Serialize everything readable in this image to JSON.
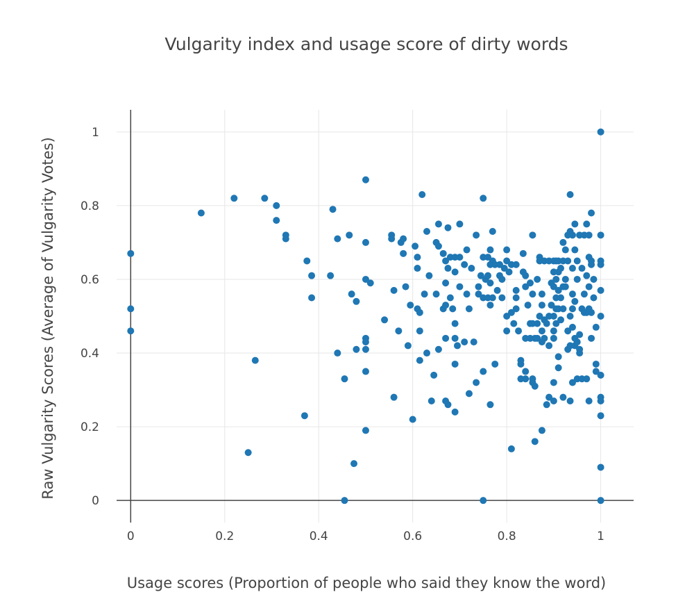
{
  "chart_data": {
    "type": "scatter",
    "title": "Vulgarity index and usage score of dirty words",
    "xlabel": "Usage scores (Proportion of people who said they know the word)",
    "ylabel": "Raw Vulgarity Scores (Average of Vulgarity Votes)",
    "xlim": [
      -0.03,
      1.07
    ],
    "ylim": [
      -0.06,
      1.06
    ],
    "x_ticks": [
      0,
      0.2,
      0.4,
      0.6,
      0.8,
      1
    ],
    "x_tick_labels": [
      "0",
      "0.2",
      "0.4",
      "0.6",
      "0.8",
      "1"
    ],
    "y_ticks": [
      0,
      0.2,
      0.4,
      0.6,
      0.8,
      1
    ],
    "y_tick_labels": [
      "0",
      "0.2",
      "0.4",
      "0.6",
      "0.8",
      "1"
    ],
    "grid": true,
    "color": "#1f77b4",
    "points": [
      [
        0,
        0.67
      ],
      [
        0,
        0.52
      ],
      [
        0,
        0.46
      ],
      [
        0.15,
        0.78
      ],
      [
        0.22,
        0.82
      ],
      [
        0.25,
        0.13
      ],
      [
        0.265,
        0.38
      ],
      [
        0.285,
        0.82
      ],
      [
        0.31,
        0.8
      ],
      [
        0.31,
        0.76
      ],
      [
        0.33,
        0.72
      ],
      [
        0.33,
        0.71
      ],
      [
        0.37,
        0.23
      ],
      [
        0.375,
        0.65
      ],
      [
        0.385,
        0.61
      ],
      [
        0.385,
        0.55
      ],
      [
        0.425,
        0.61
      ],
      [
        0.43,
        0.79
      ],
      [
        0.44,
        0.71
      ],
      [
        0.44,
        0.4
      ],
      [
        0.455,
        0.33
      ],
      [
        0.455,
        0
      ],
      [
        0.465,
        0.72
      ],
      [
        0.47,
        0.56
      ],
      [
        0.475,
        0.1
      ],
      [
        0.48,
        0.54
      ],
      [
        0.48,
        0.41
      ],
      [
        0.5,
        0.87
      ],
      [
        0.5,
        0.7
      ],
      [
        0.5,
        0.6
      ],
      [
        0.5,
        0.44
      ],
      [
        0.5,
        0.43
      ],
      [
        0.5,
        0.41
      ],
      [
        0.5,
        0.35
      ],
      [
        0.5,
        0.19
      ],
      [
        0.51,
        0.59
      ],
      [
        0.54,
        0.49
      ],
      [
        0.555,
        0.72
      ],
      [
        0.555,
        0.71
      ],
      [
        0.56,
        0.57
      ],
      [
        0.56,
        0.28
      ],
      [
        0.57,
        0.46
      ],
      [
        0.575,
        0.7
      ],
      [
        0.58,
        0.71
      ],
      [
        0.58,
        0.67
      ],
      [
        0.585,
        0.58
      ],
      [
        0.59,
        0.42
      ],
      [
        0.595,
        0.53
      ],
      [
        0.6,
        0.22
      ],
      [
        0.605,
        0.69
      ],
      [
        0.61,
        0.66
      ],
      [
        0.61,
        0.63
      ],
      [
        0.61,
        0.52
      ],
      [
        0.615,
        0.51
      ],
      [
        0.615,
        0.46
      ],
      [
        0.615,
        0.38
      ],
      [
        0.62,
        0.83
      ],
      [
        0.625,
        0.56
      ],
      [
        0.63,
        0.73
      ],
      [
        0.63,
        0.4
      ],
      [
        0.635,
        0.61
      ],
      [
        0.64,
        0.27
      ],
      [
        0.645,
        0.34
      ],
      [
        0.65,
        0.7
      ],
      [
        0.65,
        0.56
      ],
      [
        0.655,
        0.75
      ],
      [
        0.655,
        0.69
      ],
      [
        0.655,
        0.41
      ],
      [
        0.665,
        0.67
      ],
      [
        0.665,
        0.52
      ],
      [
        0.67,
        0.65
      ],
      [
        0.67,
        0.59
      ],
      [
        0.67,
        0.53
      ],
      [
        0.67,
        0.44
      ],
      [
        0.67,
        0.27
      ],
      [
        0.675,
        0.74
      ],
      [
        0.675,
        0.63
      ],
      [
        0.675,
        0.26
      ],
      [
        0.68,
        0.66
      ],
      [
        0.68,
        0.55
      ],
      [
        0.685,
        0.52
      ],
      [
        0.69,
        0.66
      ],
      [
        0.69,
        0.62
      ],
      [
        0.69,
        0.48
      ],
      [
        0.69,
        0.44
      ],
      [
        0.69,
        0.37
      ],
      [
        0.69,
        0.24
      ],
      [
        0.695,
        0.42
      ],
      [
        0.7,
        0.75
      ],
      [
        0.7,
        0.66
      ],
      [
        0.7,
        0.58
      ],
      [
        0.71,
        0.43
      ],
      [
        0.71,
        0.64
      ],
      [
        0.715,
        0.56
      ],
      [
        0.715,
        0.68
      ],
      [
        0.72,
        0.29
      ],
      [
        0.72,
        0.52
      ],
      [
        0.725,
        0.63
      ],
      [
        0.73,
        0.43
      ],
      [
        0.735,
        0.72
      ],
      [
        0.735,
        0.32
      ],
      [
        0.74,
        0.58
      ],
      [
        0.74,
        0.56
      ],
      [
        0.745,
        0.61
      ],
      [
        0.75,
        0.82
      ],
      [
        0.75,
        0.66
      ],
      [
        0.75,
        0.55
      ],
      [
        0.75,
        0.35
      ],
      [
        0.75,
        0
      ],
      [
        0.755,
        0.6
      ],
      [
        0.76,
        0.61
      ],
      [
        0.76,
        0.66
      ],
      [
        0.76,
        0.55
      ],
      [
        0.765,
        0.64
      ],
      [
        0.765,
        0.68
      ],
      [
        0.765,
        0.59
      ],
      [
        0.765,
        0.53
      ],
      [
        0.765,
        0.26
      ],
      [
        0.77,
        0.73
      ],
      [
        0.77,
        0.65
      ],
      [
        0.77,
        0.55
      ],
      [
        0.775,
        0.64
      ],
      [
        0.775,
        0.37
      ],
      [
        0.78,
        0.57
      ],
      [
        0.785,
        0.64
      ],
      [
        0.785,
        0.61
      ],
      [
        0.79,
        0.6
      ],
      [
        0.79,
        0.55
      ],
      [
        0.795,
        0.63
      ],
      [
        0.8,
        0.68
      ],
      [
        0.8,
        0.65
      ],
      [
        0.8,
        0.5
      ],
      [
        0.8,
        0.46
      ],
      [
        0.805,
        0.62
      ],
      [
        0.81,
        0.64
      ],
      [
        0.81,
        0.51
      ],
      [
        0.81,
        0.14
      ],
      [
        0.815,
        0.48
      ],
      [
        0.82,
        0.64
      ],
      [
        0.82,
        0.57
      ],
      [
        0.82,
        0.55
      ],
      [
        0.82,
        0.52
      ],
      [
        0.825,
        0.46
      ],
      [
        0.83,
        0.38
      ],
      [
        0.83,
        0.37
      ],
      [
        0.83,
        0.33
      ],
      [
        0.835,
        0.62
      ],
      [
        0.835,
        0.67
      ],
      [
        0.84,
        0.61
      ],
      [
        0.84,
        0.58
      ],
      [
        0.84,
        0.44
      ],
      [
        0.84,
        0.35
      ],
      [
        0.84,
        0.33
      ],
      [
        0.845,
        0.53
      ],
      [
        0.85,
        0.48
      ],
      [
        0.85,
        0.44
      ],
      [
        0.85,
        0.59
      ],
      [
        0.855,
        0.72
      ],
      [
        0.855,
        0.56
      ],
      [
        0.855,
        0.48
      ],
      [
        0.855,
        0.33
      ],
      [
        0.855,
        0.32
      ],
      [
        0.86,
        0.31
      ],
      [
        0.86,
        0.16
      ],
      [
        0.86,
        0.44
      ],
      [
        0.865,
        0.6
      ],
      [
        0.865,
        0.44
      ],
      [
        0.865,
        0.48
      ],
      [
        0.87,
        0.66
      ],
      [
        0.87,
        0.65
      ],
      [
        0.87,
        0.5
      ],
      [
        0.875,
        0.56
      ],
      [
        0.875,
        0.53
      ],
      [
        0.875,
        0.46
      ],
      [
        0.875,
        0.43
      ],
      [
        0.875,
        0.19
      ],
      [
        0.88,
        0.65
      ],
      [
        0.88,
        0.44
      ],
      [
        0.88,
        0.49
      ],
      [
        0.885,
        0.48
      ],
      [
        0.885,
        0.26
      ],
      [
        0.89,
        0.65
      ],
      [
        0.89,
        0.5
      ],
      [
        0.89,
        0.42
      ],
      [
        0.89,
        0.28
      ],
      [
        0.895,
        0.59
      ],
      [
        0.895,
        0.53
      ],
      [
        0.9,
        0.65
      ],
      [
        0.9,
        0.62
      ],
      [
        0.9,
        0.58
      ],
      [
        0.9,
        0.5
      ],
      [
        0.9,
        0.46
      ],
      [
        0.9,
        0.44
      ],
      [
        0.9,
        0.32
      ],
      [
        0.9,
        0.27
      ],
      [
        0.905,
        0.65
      ],
      [
        0.905,
        0.6
      ],
      [
        0.905,
        0.55
      ],
      [
        0.905,
        0.52
      ],
      [
        0.905,
        0.48
      ],
      [
        0.91,
        0.65
      ],
      [
        0.91,
        0.62
      ],
      [
        0.91,
        0.57
      ],
      [
        0.91,
        0.52
      ],
      [
        0.91,
        0.36
      ],
      [
        0.91,
        0.39
      ],
      [
        0.915,
        0.63
      ],
      [
        0.915,
        0.55
      ],
      [
        0.915,
        0.49
      ],
      [
        0.92,
        0.65
      ],
      [
        0.92,
        0.7
      ],
      [
        0.92,
        0.58
      ],
      [
        0.92,
        0.52
      ],
      [
        0.92,
        0.28
      ],
      [
        0.925,
        0.68
      ],
      [
        0.925,
        0.6
      ],
      [
        0.925,
        0.58
      ],
      [
        0.93,
        0.65
      ],
      [
        0.93,
        0.72
      ],
      [
        0.93,
        0.46
      ],
      [
        0.93,
        0.41
      ],
      [
        0.935,
        0.83
      ],
      [
        0.935,
        0.73
      ],
      [
        0.935,
        0.5
      ],
      [
        0.935,
        0.42
      ],
      [
        0.935,
        0.27
      ],
      [
        0.94,
        0.72
      ],
      [
        0.94,
        0.63
      ],
      [
        0.94,
        0.56
      ],
      [
        0.94,
        0.52
      ],
      [
        0.94,
        0.47
      ],
      [
        0.94,
        0.32
      ],
      [
        0.945,
        0.75
      ],
      [
        0.945,
        0.68
      ],
      [
        0.945,
        0.54
      ],
      [
        0.945,
        0.44
      ],
      [
        0.945,
        0.42
      ],
      [
        0.95,
        0.65
      ],
      [
        0.95,
        0.6
      ],
      [
        0.95,
        0.43
      ],
      [
        0.95,
        0.33
      ],
      [
        0.955,
        0.72
      ],
      [
        0.955,
        0.45
      ],
      [
        0.955,
        0.41
      ],
      [
        0.955,
        0.4
      ],
      [
        0.96,
        0.63
      ],
      [
        0.96,
        0.52
      ],
      [
        0.96,
        0.33
      ],
      [
        0.965,
        0.72
      ],
      [
        0.965,
        0.56
      ],
      [
        0.965,
        0.51
      ],
      [
        0.97,
        0.75
      ],
      [
        0.97,
        0.61
      ],
      [
        0.97,
        0.51
      ],
      [
        0.97,
        0.33
      ],
      [
        0.975,
        0.72
      ],
      [
        0.975,
        0.66
      ],
      [
        0.975,
        0.58
      ],
      [
        0.975,
        0.52
      ],
      [
        0.975,
        0.27
      ],
      [
        0.98,
        0.78
      ],
      [
        0.98,
        0.65
      ],
      [
        0.98,
        0.64
      ],
      [
        0.98,
        0.44
      ],
      [
        0.98,
        0.51
      ],
      [
        0.985,
        0.6
      ],
      [
        0.985,
        0.55
      ],
      [
        0.99,
        0.37
      ],
      [
        0.99,
        0.35
      ],
      [
        0.99,
        0.47
      ],
      [
        1.0,
        1.0
      ],
      [
        1.0,
        0.72
      ],
      [
        1.0,
        0.65
      ],
      [
        1.0,
        0.64
      ],
      [
        1.0,
        0.57
      ],
      [
        1.0,
        0.5
      ],
      [
        1.0,
        0.34
      ],
      [
        1.0,
        0.28
      ],
      [
        1.0,
        0.27
      ],
      [
        1.0,
        0.23
      ],
      [
        1.0,
        0.09
      ],
      [
        1.0,
        0
      ]
    ]
  }
}
